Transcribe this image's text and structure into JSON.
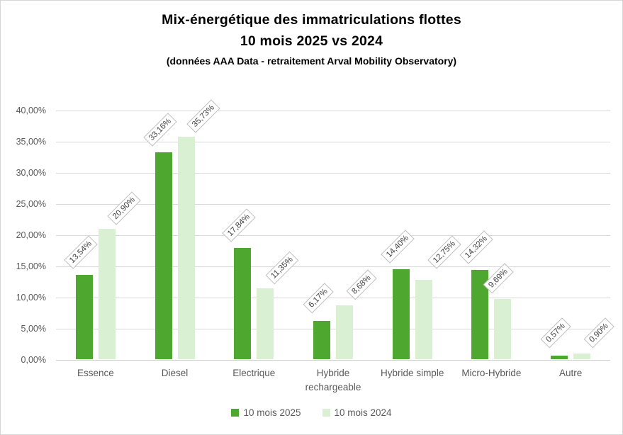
{
  "title": {
    "line1": "Mix-énergétique des immatriculations flottes",
    "line2": "10 mois 2025 vs 2024",
    "subtitle": "(données AAA Data - retraitement Arval Mobility Observatory)"
  },
  "chart_data": {
    "type": "bar",
    "title": "Mix-énergétique des immatriculations flottes 10 mois 2025 vs 2024",
    "subtitle": "(données AAA Data - retraitement Arval Mobility Observatory)",
    "categories": [
      "Essence",
      "Diesel",
      "Electrique",
      "Hybride rechargeable",
      "Hybride simple",
      "Micro-Hybride",
      "Autre"
    ],
    "series": [
      {
        "name": "10 mois 2025",
        "color": "#4EA72E",
        "values": [
          13.54,
          33.16,
          17.84,
          6.17,
          14.4,
          14.32,
          0.57
        ],
        "labels": [
          "13,54%",
          "33,16%",
          "17,84%",
          "6,17%",
          "14,40%",
          "14,32%",
          "0,57%"
        ]
      },
      {
        "name": "10 mois 2024",
        "color": "#DAF0D3",
        "values": [
          20.9,
          35.73,
          11.35,
          8.68,
          12.75,
          9.69,
          0.9
        ],
        "labels": [
          "20,90%",
          "35,73%",
          "11,35%",
          "8,68%",
          "12,75%",
          "9,69%",
          "0,90%"
        ]
      }
    ],
    "y_axis": {
      "min": 0,
      "max": 40,
      "step": 5,
      "tick_labels": [
        "0,00%",
        "5,00%",
        "10,00%",
        "15,00%",
        "20,00%",
        "25,00%",
        "30,00%",
        "35,00%",
        "40,00%"
      ]
    },
    "grid": true,
    "legend_position": "bottom",
    "xlabel": "",
    "ylabel": ""
  },
  "colors": {
    "series_2025": "#4EA72E",
    "series_2024": "#DAF0D3",
    "gridline": "#D9D9D9",
    "axis_text": "#595959",
    "data_label_text": "#404040",
    "data_label_border": "#BFBFBF",
    "title_text": "#000000"
  }
}
